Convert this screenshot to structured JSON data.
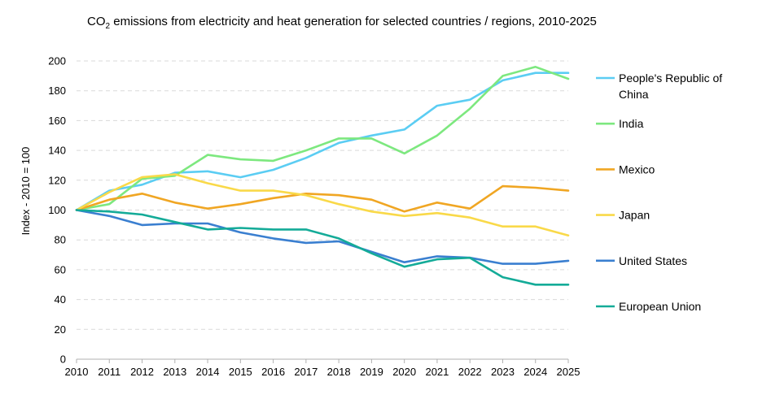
{
  "chart_data": {
    "type": "line",
    "title_prefix": "CO",
    "title_sub": "2",
    "title_rest": " emissions from electricity and heat generation for selected countries / regions, 2010-2025",
    "xlabel": "",
    "ylabel": "Index - 2010 = 100",
    "ylim": [
      0,
      200
    ],
    "yticks": [
      0,
      20,
      40,
      60,
      80,
      100,
      120,
      140,
      160,
      180,
      200
    ],
    "x": [
      2010,
      2011,
      2012,
      2013,
      2014,
      2015,
      2016,
      2017,
      2018,
      2019,
      2020,
      2021,
      2022,
      2023,
      2024,
      2025
    ],
    "grid": "horizontal dashed",
    "legend_position": "right",
    "series": [
      {
        "name": "People's Republic of China",
        "legend_lines": [
          "People's Republic of",
          "China"
        ],
        "color": "#5bcdf3",
        "values": [
          100,
          113,
          117,
          125,
          126,
          122,
          127,
          135,
          145,
          150,
          154,
          170,
          174,
          187,
          192,
          192
        ]
      },
      {
        "name": "India",
        "legend_lines": [
          "India"
        ],
        "color": "#7de87f",
        "values": [
          100,
          104,
          121,
          123,
          137,
          134,
          133,
          140,
          148,
          148,
          138,
          150,
          168,
          190,
          196,
          188
        ]
      },
      {
        "name": "Mexico",
        "legend_lines": [
          "Mexico"
        ],
        "color": "#f0a623",
        "values": [
          100,
          107,
          111,
          105,
          101,
          104,
          108,
          111,
          110,
          107,
          99,
          105,
          101,
          116,
          115,
          113
        ]
      },
      {
        "name": "Japan",
        "legend_lines": [
          "Japan"
        ],
        "color": "#f9d949",
        "values": [
          100,
          112,
          122,
          124,
          118,
          113,
          113,
          110,
          104,
          99,
          96,
          98,
          95,
          89,
          89,
          83
        ]
      },
      {
        "name": "United States",
        "legend_lines": [
          "United States"
        ],
        "color": "#3a7fd0",
        "values": [
          100,
          96,
          90,
          91,
          91,
          85,
          81,
          78,
          79,
          72,
          65,
          69,
          68,
          64,
          64,
          66
        ]
      },
      {
        "name": "European Union",
        "legend_lines": [
          "European Union"
        ],
        "color": "#14ab98",
        "values": [
          100,
          99,
          97,
          92,
          87,
          88,
          87,
          87,
          81,
          71,
          62,
          67,
          68,
          55,
          50,
          50
        ]
      }
    ]
  }
}
